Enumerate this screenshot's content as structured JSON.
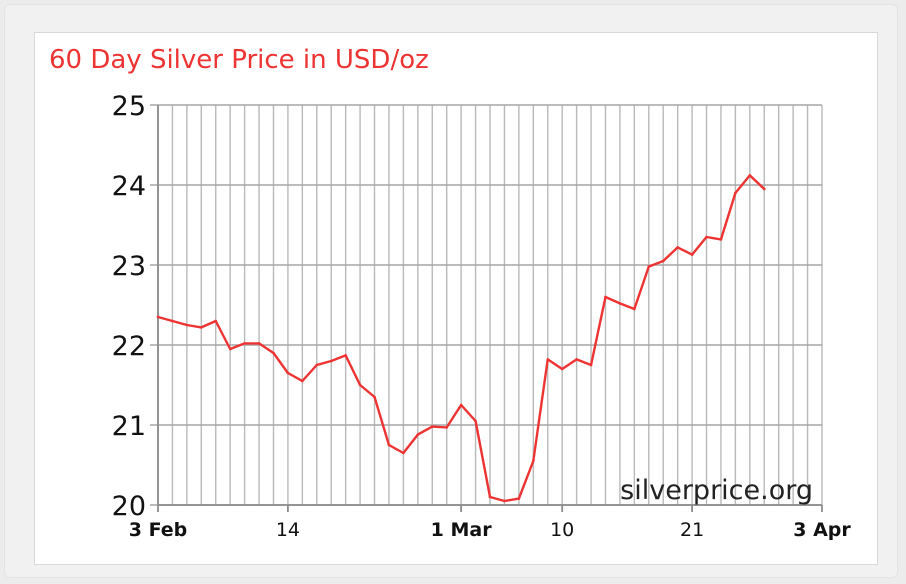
{
  "chart_data": {
    "type": "line",
    "title": "60 Day Silver Price in USD/oz",
    "watermark": "silverprice.org",
    "line_color": "#ee3333",
    "title_color": "#ee3333",
    "grid": true,
    "ylim": [
      20,
      25
    ],
    "yticks": [
      "25",
      "24",
      "23",
      "22",
      "21",
      "20"
    ],
    "xticks": [
      {
        "label": "3 Feb",
        "index": 0,
        "bold": true
      },
      {
        "label": "14",
        "index": 9,
        "bold": false
      },
      {
        "label": "1 Mar",
        "index": 21,
        "bold": true
      },
      {
        "label": "10",
        "index": 28,
        "bold": false
      },
      {
        "label": "21",
        "index": 37,
        "bold": false
      },
      {
        "label": "3 Apr",
        "index": 46,
        "bold": true
      }
    ],
    "x_count": 47,
    "series": [
      {
        "values": [
          {
            "x": 0,
            "y": 22.35
          },
          {
            "x": 1,
            "y": 22.3
          },
          {
            "x": 2,
            "y": 22.25
          },
          {
            "x": 3,
            "y": 22.22
          },
          {
            "x": 4,
            "y": 22.3
          },
          {
            "x": 5,
            "y": 21.95
          },
          {
            "x": 6,
            "y": 22.02
          },
          {
            "x": 7,
            "y": 22.02
          },
          {
            "x": 8,
            "y": 21.9
          },
          {
            "x": 9,
            "y": 21.65
          },
          {
            "x": 10,
            "y": 21.55
          },
          {
            "x": 11,
            "y": 21.75
          },
          {
            "x": 12,
            "y": 21.8
          },
          {
            "x": 13,
            "y": 21.87
          },
          {
            "x": 14,
            "y": 21.5
          },
          {
            "x": 15,
            "y": 21.35
          },
          {
            "x": 16,
            "y": 20.75
          },
          {
            "x": 17,
            "y": 20.65
          },
          {
            "x": 18,
            "y": 20.88
          },
          {
            "x": 19,
            "y": 20.98
          },
          {
            "x": 20,
            "y": 20.97
          },
          {
            "x": 21,
            "y": 21.25
          },
          {
            "x": 22,
            "y": 21.05
          },
          {
            "x": 23,
            "y": 20.1
          },
          {
            "x": 24,
            "y": 20.05
          },
          {
            "x": 25,
            "y": 20.08
          },
          {
            "x": 26,
            "y": 20.55
          },
          {
            "x": 27,
            "y": 21.82
          },
          {
            "x": 28,
            "y": 21.7
          },
          {
            "x": 29,
            "y": 21.82
          },
          {
            "x": 30,
            "y": 21.75
          },
          {
            "x": 31,
            "y": 22.6
          },
          {
            "x": 32,
            "y": 22.52
          },
          {
            "x": 33,
            "y": 22.45
          },
          {
            "x": 34,
            "y": 22.98
          },
          {
            "x": 35,
            "y": 23.05
          },
          {
            "x": 36,
            "y": 23.22
          },
          {
            "x": 37,
            "y": 23.13
          },
          {
            "x": 38,
            "y": 23.35
          },
          {
            "x": 39,
            "y": 23.32
          },
          {
            "x": 40,
            "y": 23.9
          },
          {
            "x": 41,
            "y": 24.12
          },
          {
            "x": 42,
            "y": 23.95
          }
        ]
      }
    ]
  }
}
